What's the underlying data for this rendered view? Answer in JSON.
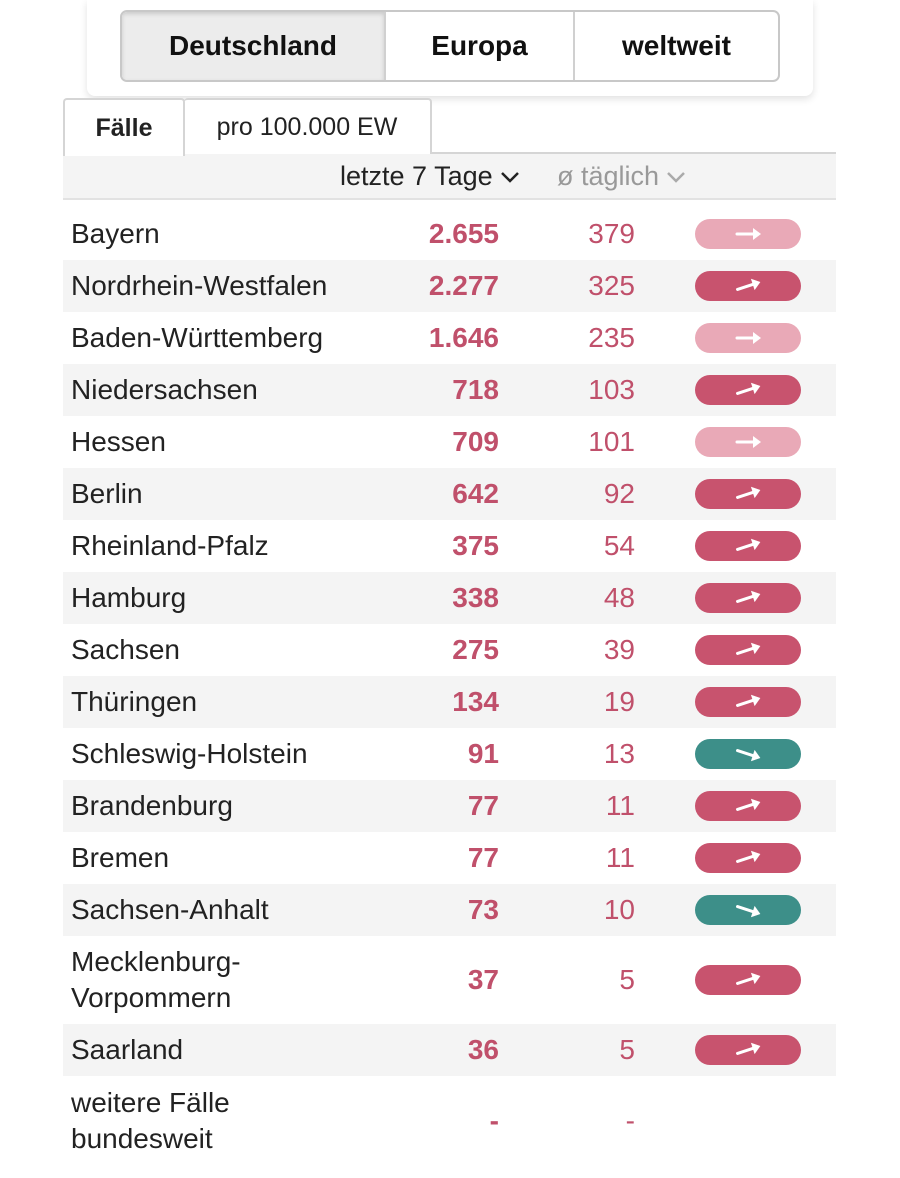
{
  "regions": {
    "items": [
      {
        "label": "Deutschland",
        "active": true
      },
      {
        "label": "Europa",
        "active": false
      },
      {
        "label": "weltweit",
        "active": false
      }
    ]
  },
  "tabs": {
    "cases": "Fälle",
    "per100k": "pro 100.000 EW"
  },
  "columns": {
    "week": "letzte 7 Tage",
    "daily": "ø täglich"
  },
  "colors": {
    "trend_up": "#c8536e",
    "trend_flat": "#e9a9b7",
    "trend_down": "#3d8f89",
    "value": "#c0506b"
  },
  "rows": [
    {
      "name": "Bayern",
      "week": "2.655",
      "daily": "379",
      "trend": "flat"
    },
    {
      "name": "Nordrhein-Westfalen",
      "week": "2.277",
      "daily": "325",
      "trend": "up"
    },
    {
      "name": "Baden-Württemberg",
      "week": "1.646",
      "daily": "235",
      "trend": "flat"
    },
    {
      "name": "Niedersachsen",
      "week": "718",
      "daily": "103",
      "trend": "up"
    },
    {
      "name": "Hessen",
      "week": "709",
      "daily": "101",
      "trend": "flat"
    },
    {
      "name": "Berlin",
      "week": "642",
      "daily": "92",
      "trend": "up"
    },
    {
      "name": "Rheinland-Pfalz",
      "week": "375",
      "daily": "54",
      "trend": "up"
    },
    {
      "name": "Hamburg",
      "week": "338",
      "daily": "48",
      "trend": "up"
    },
    {
      "name": "Sachsen",
      "week": "275",
      "daily": "39",
      "trend": "up"
    },
    {
      "name": "Thüringen",
      "week": "134",
      "daily": "19",
      "trend": "up"
    },
    {
      "name": "Schleswig-Holstein",
      "week": "91",
      "daily": "13",
      "trend": "down"
    },
    {
      "name": "Brandenburg",
      "week": "77",
      "daily": "11",
      "trend": "up"
    },
    {
      "name": "Bremen",
      "week": "77",
      "daily": "11",
      "trend": "up"
    },
    {
      "name": "Sachsen-Anhalt",
      "week": "73",
      "daily": "10",
      "trend": "down"
    },
    {
      "name": "Mecklenburg-Vorpommern",
      "name_lines": [
        "Mecklenburg-",
        "Vorpommern"
      ],
      "week": "37",
      "daily": "5",
      "trend": "up"
    },
    {
      "name": "Saarland",
      "week": "36",
      "daily": "5",
      "trend": "up"
    },
    {
      "name": "weitere Fälle bundesweit",
      "name_lines": [
        "weitere Fälle",
        "bundesweit"
      ],
      "week": "-",
      "daily": "-",
      "trend": "none"
    }
  ]
}
